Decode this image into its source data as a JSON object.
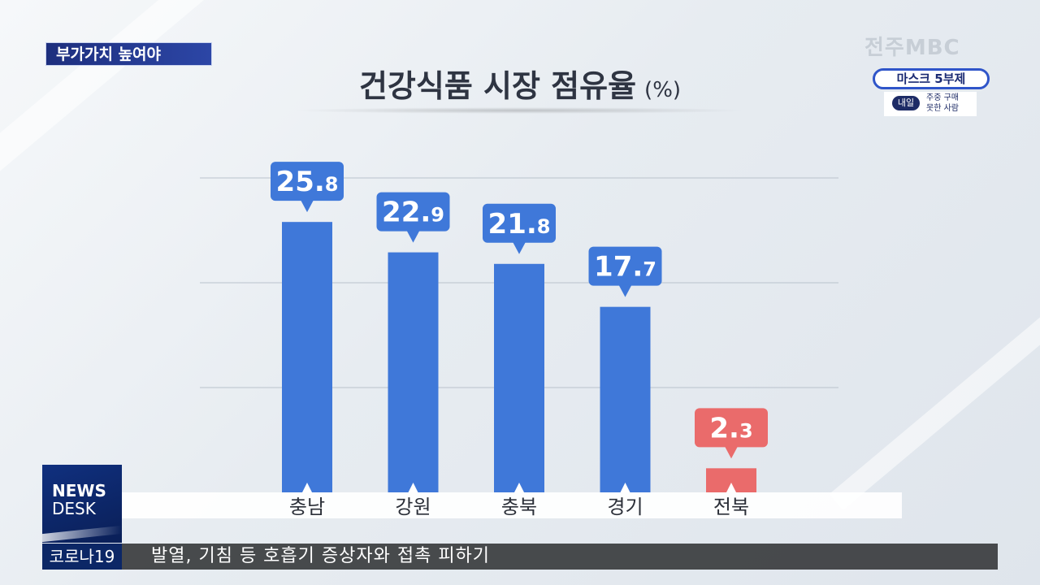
{
  "topic_label": "부가가치 높여야",
  "title": "건강식품 시장 점유율",
  "title_unit": "(%)",
  "logo_text": "전주MBC",
  "promo": {
    "main": "마스크 5부제",
    "badge": "내일",
    "line1": "주중 구매",
    "line2": "못한 사람"
  },
  "news_desk": {
    "line1": "NEWS",
    "line2": "DESK"
  },
  "ticker": {
    "tag": "코로나19",
    "text": "발열, 기침 등 호흡기 증상자와 접촉 피하기"
  },
  "colors": {
    "bar_default": "#3f78d9",
    "bar_highlight": "#ea6b6b"
  },
  "chart_data": {
    "type": "bar",
    "title": "건강식품 시장 점유율",
    "ylabel": "(%)",
    "categories": [
      "충남",
      "강원",
      "충북",
      "경기",
      "전북"
    ],
    "values": [
      25.8,
      22.9,
      21.8,
      17.7,
      2.3
    ],
    "labels": [
      "25.8",
      "22.9",
      "21.8",
      "17.7",
      "2.3"
    ],
    "highlight": "전북",
    "ylim": [
      0,
      30
    ],
    "grid": true
  }
}
